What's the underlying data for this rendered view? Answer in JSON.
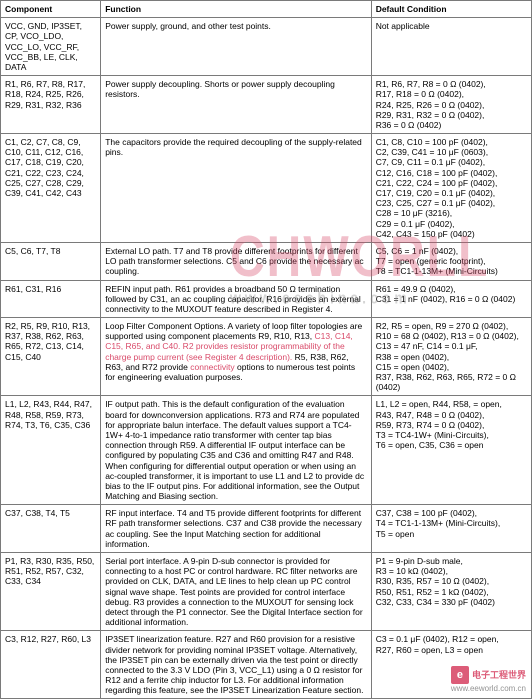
{
  "columns": [
    "Component",
    "Function",
    "Default Condition"
  ],
  "rows": [
    {
      "component": "VCC, GND, IP3SET, CP, VCO_LDO, VCC_LO, VCC_RF, VCC_BB, LE, CLK, DATA",
      "function": "Power supply, ground, and other test points.",
      "default": "Not applicable"
    },
    {
      "component": "R1, R6, R7, R8, R17, R18, R24, R25, R26, R29, R31, R32, R36",
      "function": "Power supply decoupling. Shorts or power supply decoupling resistors.",
      "default": "R1, R6, R7, R8 = 0 Ω (0402),\nR17, R18 = 0 Ω (0402),\nR24, R25, R26 = 0 Ω (0402),\nR29, R31, R32 = 0 Ω (0402),\nR36 = 0 Ω (0402)"
    },
    {
      "component": "C1, C2, C7, C8, C9, C10, C11, C12, C16, C17, C18, C19, C20, C21, C22, C23, C24, C25, C27, C28, C29, C39, C41, C42, C43",
      "function": "The capacitors provide the required decoupling of the supply-related pins.",
      "default": "C1, C8, C10 = 100 pF (0402),\nC2, C39, C41 = 10 μF (0603),\nC7, C9, C11 = 0.1 μF (0402),\nC12, C16, C18 = 100 pF (0402),\nC21, C22, C24 = 100 pF (0402),\nC17, C19, C20 = 0.1 μF (0402),\nC23, C25, C27 = 0.1 μF (0402),\nC28 = 10 μF (3216),\nC29 = 0.1 μF (0402),\nC42, C43 = 150 pF (0402)"
    },
    {
      "component": "C5, C6, T7, T8",
      "function": "External LO path. T7 and T8 provide different footprints for different LO path transformer selections. C5 and C6 provide the necessary ac coupling.",
      "default": "C5, C6 = 1 nF (0402),\nT7 = open (generic footprint),\nT8 = TC1-1-13M+ (Mini-Circuits)"
    },
    {
      "component": "R61, C31, R16",
      "function": "REFIN input path. R61 provides a broadband 50 Ω termination followed by C31, an ac coupling capacitor. R16 provides an external connectivity to the MUXOUT feature described in Register 4.",
      "default": "R61 = 49.9 Ω (0402),\nC31 = 1 nF (0402), R16 = 0 Ω (0402)"
    },
    {
      "component": "R2, R5, R9, R10, R13, R37, R38, R62, R63, R65, R72, C13, C14, C15, C40",
      "function_pre": "Loop Filter Component Options. A variety of loop filter topologies are supported using component placements R9, R10, R13, ",
      "function_pink1": "C13, C14, C15, R65, and C40. R2 provides resistor programmability of the charge pump current (see Register 4 description). ",
      "function_mid": "R5, R38, R62, R63, and R72 provide ",
      "function_pink2": "connectivity ",
      "function_post": "options to numerous test points for engineering evaluation purposes.",
      "default": "R2, R5 = open, R9 = 270 Ω (0402),\nR10 = 68 Ω (0402), R13 = 0 Ω (0402),\nC13 = 47 nF, C14 = 0.1 μF,\nR38 = open (0402),\nC15 = open (0402),\nR37, R38, R62, R63, R65, R72 = 0 Ω (0402)"
    },
    {
      "component": "L1, L2, R43, R44, R47, R48, R58, R59, R73, R74, T3, T6, C35, C36",
      "function": "IF output path. This is the default configuration of the evaluation board for downconversion applications. R73 and R74 are populated for appropriate balun interface. The default values support a TC4-1W+ 4-to-1 impedance ratio transformer with center tap bias connection through R59. A differential IF output interface can be configured by populating C35 and C36 and omitting R47 and R48. When configuring for differential output operation or when using an ac-coupled transformer, it is important to use L1 and L2 to provide dc bias to the IF output pins. For additional information, see the Output Matching and Biasing section.",
      "default": "L1, L2 = open, R44, R58, = open,\nR43, R47, R48 = 0 Ω (0402),\nR59, R73, R74 = 0 Ω (0402),\nT3 = TC4-1W+ (Mini-Circuits),\nT6 = open, C35, C36 = open"
    },
    {
      "component": "C37, C38, T4, T5",
      "function": "RF input interface. T4 and T5 provide different footprints for different RF path transformer selections. C37 and C38 provide the necessary ac coupling. See the Input Matching section for additional information.",
      "default": "C37, C38 = 100 pF (0402),\nT4 = TC1-1-13M+ (Mini-Circuits),\nT5 = open"
    },
    {
      "component": "P1, R3, R30, R35, R50, R51, R52, R57, C32, C33, C34",
      "function": "Serial port interface. A 9-pin D-sub connector is provided for connecting to a host PC or control hardware. RC filter networks are provided on CLK, DATA, and LE lines to help clean up PC control signal wave shape. Test points are provided for control interface debug. R3 provides a connection to the MUXOUT for sensing lock detect through the P1 connector. See the Digital Interface section for additional information.",
      "default": "P1 = 9-pin D-sub male,\nR3 = 10 kΩ (0402),\nR30, R35, R57 = 10 Ω (0402),\nR50, R51, R52 = 1 kΩ (0402),\nC32, C33, C34 = 330 pF (0402)"
    },
    {
      "component": "C3, R12, R27, R60, L3",
      "function": "IP3SET linearization feature. R27 and R60 provision for a resistive divider network for providing nominal IP3SET voltage. Alternatively, the IP3SET pin can be externally driven via the test point or directly connected to the 3.3 V LDO (Pin 3, VCC_L1) using a 0 Ω resistor for R12 and a ferrite chip inductor for L3. For additional information regarding this feature, see the IP3SET Linearization Feature section.",
      "default": "C3 = 0.1 μF (0402), R12 = open,\nR27, R60 = open, L3 = open"
    }
  ],
  "watermark": {
    "main": "CHWORLL",
    "sub": "www.eechina.com"
  },
  "footer": {
    "label": "电子工程世界",
    "url": "www.eeworld.com.cn"
  }
}
